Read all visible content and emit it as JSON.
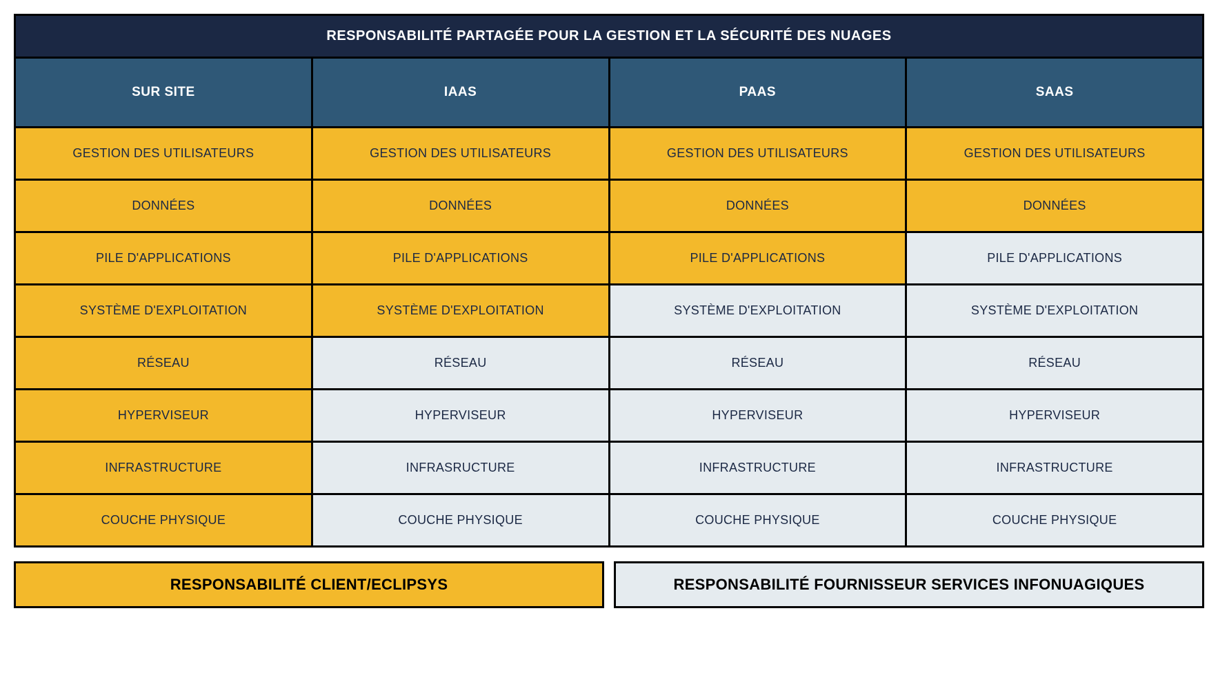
{
  "title": "RESPONSABILITÉ PARTAGÉE POUR LA GESTION ET LA SÉCURITÉ DES NUAGES",
  "colors": {
    "title_bg": "#1b2844",
    "header_bg": "#2f5877",
    "client_bg": "#f3b92b",
    "provider_bg": "#e5ebef",
    "border": "#000000",
    "header_text": "#ffffff",
    "cell_text": "#1b2844"
  },
  "typography": {
    "title_fontsize": 20,
    "header_fontsize": 19,
    "cell_fontsize": 18,
    "legend_fontsize": 22,
    "font_family": "Arial, Helvetica, sans-serif"
  },
  "columns": [
    "SUR SITE",
    "IAAS",
    "PAAS",
    "SAAS"
  ],
  "rows": [
    {
      "cells": [
        {
          "label": "GESTION DES UTILISATEURS",
          "responsibility": "client"
        },
        {
          "label": "GESTION DES UTILISATEURS",
          "responsibility": "client"
        },
        {
          "label": "GESTION DES UTILISATEURS",
          "responsibility": "client"
        },
        {
          "label": "GESTION DES UTILISATEURS",
          "responsibility": "client"
        }
      ]
    },
    {
      "cells": [
        {
          "label": "DONNÉES",
          "responsibility": "client"
        },
        {
          "label": "DONNÉES",
          "responsibility": "client"
        },
        {
          "label": "DONNÉES",
          "responsibility": "client"
        },
        {
          "label": "DONNÉES",
          "responsibility": "client"
        }
      ]
    },
    {
      "cells": [
        {
          "label": "PILE D'APPLICATIONS",
          "responsibility": "client"
        },
        {
          "label": "PILE D'APPLICATIONS",
          "responsibility": "client"
        },
        {
          "label": "PILE D'APPLICATIONS",
          "responsibility": "client"
        },
        {
          "label": "PILE D'APPLICATIONS",
          "responsibility": "provider"
        }
      ]
    },
    {
      "cells": [
        {
          "label": "SYSTÈME D'EXPLOITATION",
          "responsibility": "client"
        },
        {
          "label": "SYSTÈME D'EXPLOITATION",
          "responsibility": "client"
        },
        {
          "label": "SYSTÈME D'EXPLOITATION",
          "responsibility": "provider"
        },
        {
          "label": "SYSTÈME D'EXPLOITATION",
          "responsibility": "provider"
        }
      ]
    },
    {
      "cells": [
        {
          "label": "RÉSEAU",
          "responsibility": "client"
        },
        {
          "label": "RÉSEAU",
          "responsibility": "provider"
        },
        {
          "label": "RÉSEAU",
          "responsibility": "provider"
        },
        {
          "label": "RÉSEAU",
          "responsibility": "provider"
        }
      ]
    },
    {
      "cells": [
        {
          "label": "HYPERVISEUR",
          "responsibility": "client"
        },
        {
          "label": "HYPERVISEUR",
          "responsibility": "provider"
        },
        {
          "label": "HYPERVISEUR",
          "responsibility": "provider"
        },
        {
          "label": "HYPERVISEUR",
          "responsibility": "provider"
        }
      ]
    },
    {
      "cells": [
        {
          "label": "INFRASTRUCTURE",
          "responsibility": "client"
        },
        {
          "label": "INFRASRUCTURE",
          "responsibility": "provider"
        },
        {
          "label": "INFRASTRUCTURE",
          "responsibility": "provider"
        },
        {
          "label": "INFRASTRUCTURE",
          "responsibility": "provider"
        }
      ]
    },
    {
      "cells": [
        {
          "label": "COUCHE PHYSIQUE",
          "responsibility": "client"
        },
        {
          "label": "COUCHE PHYSIQUE",
          "responsibility": "provider"
        },
        {
          "label": "COUCHE PHYSIQUE",
          "responsibility": "provider"
        },
        {
          "label": "COUCHE PHYSIQUE",
          "responsibility": "provider"
        }
      ]
    }
  ],
  "legend": {
    "client": "RESPONSABILITÉ CLIENT/ECLIPSYS",
    "provider": "RESPONSABILITÉ FOURNISSEUR SERVICES INFONUAGIQUES"
  }
}
